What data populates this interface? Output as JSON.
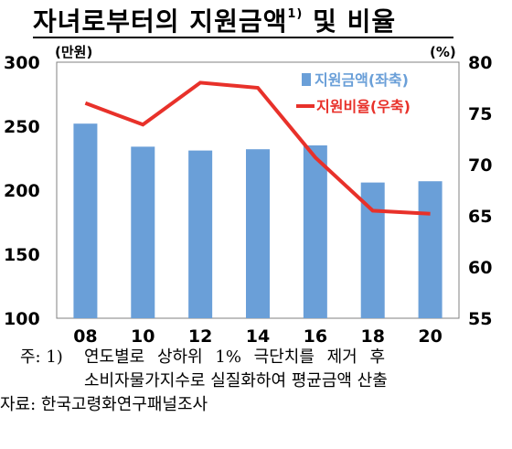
{
  "title": {
    "main": "자녀로부터의 지원금액",
    "superscript": "1)",
    "suffix": "및 비율"
  },
  "chart_data": {
    "type": "bar",
    "categories": [
      "08",
      "10",
      "12",
      "14",
      "16",
      "18",
      "20"
    ],
    "series": [
      {
        "name": "지원금액(좌축)",
        "type": "bar",
        "axis": "left",
        "color": "#6a9fd8",
        "values": [
          252,
          234,
          231,
          232,
          235,
          206,
          207
        ]
      },
      {
        "name": "지원비율(우축)",
        "type": "line",
        "axis": "right",
        "color": "#e8312a",
        "values": [
          76.0,
          73.9,
          78.0,
          77.5,
          70.7,
          65.5,
          65.2
        ]
      }
    ],
    "y_left": {
      "unit": "(만원)",
      "min": 100,
      "max": 300,
      "ticks": [
        100,
        150,
        200,
        250,
        300
      ]
    },
    "y_right": {
      "unit": "(%)",
      "min": 55,
      "max": 80,
      "ticks": [
        55,
        60,
        65,
        70,
        75,
        80
      ]
    },
    "legend_position": "top-right",
    "grid": false
  },
  "notes": {
    "note_prefix": "주: 1)",
    "note_line1": "연도별로 상하위 1% 극단치를 제거 후",
    "note_line2": "소비자물가지수로 실질화하여 평균금액 산출",
    "source": "자료: 한국고령화연구패널조사"
  }
}
